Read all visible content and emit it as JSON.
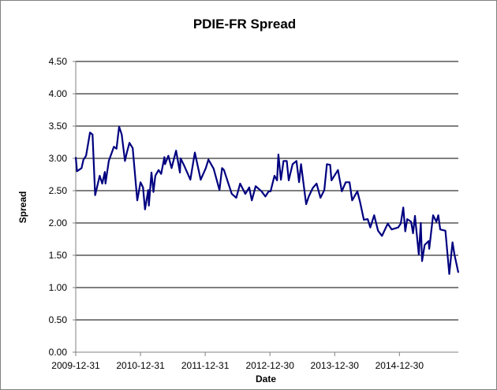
{
  "chart_data": {
    "type": "line",
    "title": "PDIE-FR Spread",
    "xlabel": "Date",
    "ylabel": "Spread",
    "ylim": [
      0,
      4.5
    ],
    "xlim": [
      2010.0,
      2015.91
    ],
    "grid": "horizontal",
    "legend": "none",
    "y_ticks": [
      "0.00",
      "0.50",
      "1.00",
      "1.50",
      "2.00",
      "2.50",
      "3.00",
      "3.50",
      "4.00",
      "4.50"
    ],
    "x_ticks": [
      {
        "label": "2009-12-31",
        "x": 2010.0
      },
      {
        "label": "2010-12-31",
        "x": 2011.0
      },
      {
        "label": "2011-12-31",
        "x": 2012.0
      },
      {
        "label": "2012-12-30",
        "x": 2013.0
      },
      {
        "label": "2013-12-30",
        "x": 2014.0
      },
      {
        "label": "2014-12-30",
        "x": 2015.0
      }
    ],
    "series": [
      {
        "name": "PDIE-FR Spread",
        "color": "#000080",
        "x": [
          2010.0,
          2010.02,
          2010.09,
          2010.12,
          2010.16,
          2010.22,
          2010.26,
          2010.3,
          2010.37,
          2010.41,
          2010.45,
          2010.46,
          2010.51,
          2010.59,
          2010.63,
          2010.67,
          2010.71,
          2010.76,
          2010.79,
          2010.83,
          2010.88,
          2010.95,
          2011.0,
          2011.04,
          2011.07,
          2011.12,
          2011.13,
          2011.17,
          2011.2,
          2011.23,
          2011.28,
          2011.32,
          2011.37,
          2011.38,
          2011.43,
          2011.48,
          2011.55,
          2011.61,
          2011.62,
          2011.67,
          2011.77,
          2011.84,
          2011.93,
          2012.01,
          2012.05,
          2012.13,
          2012.22,
          2012.26,
          2012.29,
          2012.41,
          2012.48,
          2012.54,
          2012.62,
          2012.68,
          2012.72,
          2012.78,
          2012.87,
          2012.93,
          2012.98,
          2013.01,
          2013.07,
          2013.11,
          2013.13,
          2013.17,
          2013.21,
          2013.26,
          2013.29,
          2013.35,
          2013.41,
          2013.45,
          2013.48,
          2013.56,
          2013.6,
          2013.66,
          2013.72,
          2013.78,
          2013.84,
          2013.88,
          2013.93,
          2013.95,
          2014.05,
          2014.11,
          2014.17,
          2014.23,
          2014.27,
          2014.35,
          2014.39,
          2014.45,
          2014.51,
          2014.55,
          2014.61,
          2014.67,
          2014.73,
          2014.82,
          2014.88,
          2014.98,
          2015.02,
          2015.06,
          2015.09,
          2015.12,
          2015.18,
          2015.21,
          2015.24,
          2015.3,
          2015.33,
          2015.35,
          2015.39,
          2015.45,
          2015.46,
          2015.52,
          2015.57,
          2015.6,
          2015.63,
          2015.71,
          2015.77,
          2015.82,
          2015.85,
          2015.91
        ],
        "y": [
          3.02,
          2.8,
          2.85,
          2.98,
          3.04,
          3.4,
          3.37,
          2.43,
          2.73,
          2.61,
          2.79,
          2.61,
          2.96,
          3.18,
          3.15,
          3.49,
          3.37,
          2.96,
          3.09,
          3.24,
          3.16,
          2.35,
          2.63,
          2.55,
          2.21,
          2.51,
          2.27,
          2.78,
          2.48,
          2.73,
          2.82,
          2.76,
          3.02,
          2.91,
          3.04,
          2.85,
          3.12,
          2.78,
          3.0,
          2.9,
          2.67,
          3.09,
          2.67,
          2.85,
          2.98,
          2.84,
          2.51,
          2.85,
          2.82,
          2.45,
          2.39,
          2.61,
          2.45,
          2.55,
          2.35,
          2.57,
          2.49,
          2.41,
          2.49,
          2.49,
          2.73,
          2.66,
          3.06,
          2.67,
          2.96,
          2.96,
          2.66,
          2.91,
          2.96,
          2.63,
          2.91,
          2.29,
          2.41,
          2.54,
          2.61,
          2.39,
          2.51,
          2.91,
          2.9,
          2.66,
          2.82,
          2.49,
          2.63,
          2.63,
          2.35,
          2.49,
          2.33,
          2.05,
          2.06,
          1.93,
          2.12,
          1.88,
          1.8,
          1.99,
          1.9,
          1.93,
          1.99,
          2.24,
          1.87,
          2.06,
          2.02,
          1.84,
          2.11,
          1.51,
          2.0,
          1.41,
          1.66,
          1.72,
          1.6,
          2.12,
          2.02,
          2.12,
          1.9,
          1.88,
          1.21,
          1.7,
          1.51,
          1.23
        ]
      }
    ]
  }
}
